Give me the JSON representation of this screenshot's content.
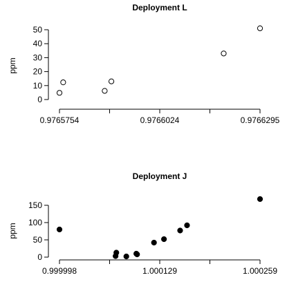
{
  "chart_data": [
    {
      "type": "scatter",
      "title": "Deployment L",
      "ylabel": "ppm",
      "xlabel": "",
      "marker": "open",
      "xlim": [
        0.9765754,
        0.9766295
      ],
      "ylim": [
        0,
        50
      ],
      "xticks": [
        "0.9765754",
        "0.9766024",
        "0.9766295"
      ],
      "yticks": [
        "0",
        "10",
        "20",
        "30",
        "40",
        "50"
      ],
      "points": [
        {
          "x": 0.9765754,
          "y": 4.8
        },
        {
          "x": 0.9765764,
          "y": 12.3
        },
        {
          "x": 0.9765876,
          "y": 6.2
        },
        {
          "x": 0.9765894,
          "y": 13.0
        },
        {
          "x": 0.9766197,
          "y": 33.0
        },
        {
          "x": 0.9766295,
          "y": 51.0
        }
      ]
    },
    {
      "type": "scatter",
      "title": "Deployment J",
      "ylabel": "ppm",
      "xlabel": "",
      "marker": "filled",
      "xlim": [
        0.999998,
        1.000259
      ],
      "ylim": [
        0,
        150
      ],
      "xticks": [
        "0.999998",
        "1.000129",
        "1.000259"
      ],
      "yticks": [
        "0",
        "50",
        "100",
        "150"
      ],
      "points": [
        {
          "x": 0.999998,
          "y": 80
        },
        {
          "x": 1.000071,
          "y": 3
        },
        {
          "x": 1.000072,
          "y": 13
        },
        {
          "x": 1.000085,
          "y": 2
        },
        {
          "x": 1.000098,
          "y": 10
        },
        {
          "x": 1.000099,
          "y": 8
        },
        {
          "x": 1.000121,
          "y": 42
        },
        {
          "x": 1.000134,
          "y": 52
        },
        {
          "x": 1.000155,
          "y": 77
        },
        {
          "x": 1.000164,
          "y": 92
        },
        {
          "x": 1.000259,
          "y": 168
        }
      ]
    }
  ]
}
